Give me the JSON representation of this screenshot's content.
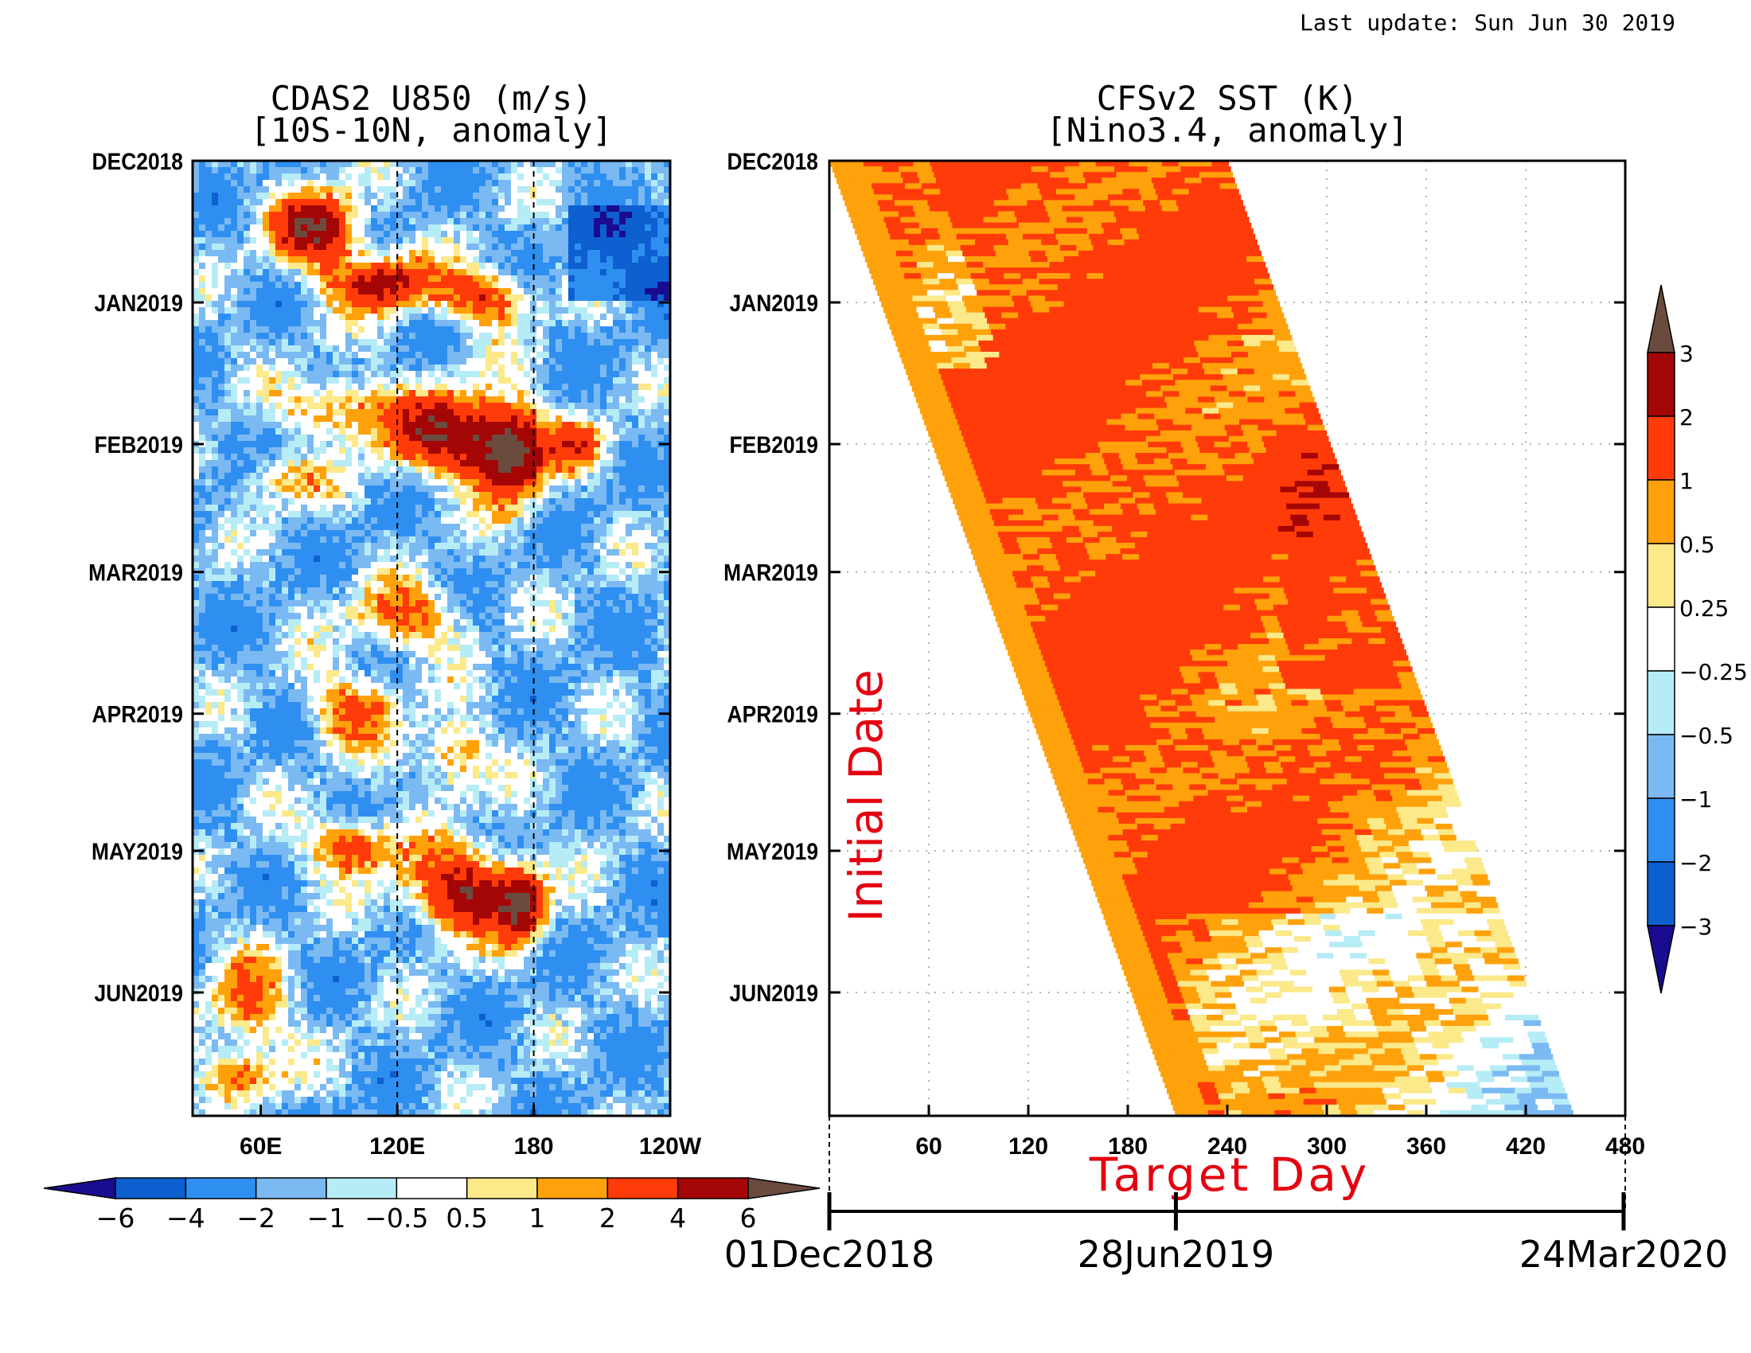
{
  "last_update": "Last update: Sun Jun 30 2019",
  "chart_data": [
    {
      "type": "heatmap",
      "title": "CDAS2 U850 (m/s)",
      "subtitle": "[10S-10N, anomaly]",
      "x_tick_labels": [
        "60E",
        "120E",
        "180",
        "120W"
      ],
      "x_ticks_lon": [
        60,
        120,
        180,
        240
      ],
      "xlim_lon": [
        30,
        240
      ],
      "reference_lines_lon": [
        120,
        180
      ],
      "y_tick_labels": [
        "DEC2018",
        "JAN2019",
        "FEB2019",
        "MAR2019",
        "APR2019",
        "MAY2019",
        "JUN2019"
      ],
      "y_ticks_day": [
        0,
        31,
        62,
        90,
        121,
        151,
        182
      ],
      "ylim_day": [
        0,
        209
      ],
      "colorbar_levels": [
        -6,
        -4,
        -2,
        -1,
        -0.5,
        0.5,
        1,
        2,
        4,
        6
      ],
      "colorbar_labels": [
        "−6",
        "−4",
        "−2",
        "−1",
        "−0.5",
        "0.5",
        "1",
        "2",
        "4",
        "6"
      ],
      "colors": [
        "#1a0c91",
        "#0e5fd0",
        "#2f8ff0",
        "#7bb9f2",
        "#b6ecf6",
        "#ffffff",
        "#fbe98a",
        "#ffa10b",
        "#ff3b0a",
        "#a40606",
        "#6b4b3e"
      ]
    },
    {
      "type": "heatmap",
      "title": "CFSv2 SST (K)",
      "subtitle": "[Nino3.4, anomaly]",
      "x_tick_labels": [
        "60",
        "120",
        "180",
        "240",
        "300",
        "360",
        "420",
        "480"
      ],
      "x_ticks": [
        60,
        120,
        180,
        240,
        300,
        360,
        420,
        480
      ],
      "xlim": [
        0,
        480
      ],
      "xlabel": "Target Day",
      "ylabel": "Initial Date",
      "y_tick_labels": [
        "DEC2018",
        "JAN2019",
        "FEB2019",
        "MAR2019",
        "APR2019",
        "MAY2019",
        "JUN2019"
      ],
      "y_ticks_day": [
        0,
        31,
        62,
        90,
        121,
        151,
        182
      ],
      "ylim_day": [
        0,
        209
      ],
      "forecast_length_days": 240,
      "date_axis_labels": [
        "01Dec2018",
        "28Jun2019",
        "24Mar2020"
      ],
      "date_axis_days": [
        0,
        209,
        479
      ],
      "colorbar_levels": [
        -3,
        -2,
        -1,
        -0.5,
        -0.25,
        0.25,
        0.5,
        1,
        2,
        3
      ],
      "colorbar_labels": [
        "−3",
        "−2",
        "−1",
        "−0.5",
        "−0.25",
        "0.25",
        "0.5",
        "1",
        "2",
        "3"
      ],
      "colors": [
        "#1a0c91",
        "#0e5fd0",
        "#2f8ff0",
        "#7bb9f2",
        "#b6ecf6",
        "#ffffff",
        "#fbe98a",
        "#ffa10b",
        "#ff3b0a",
        "#a40606",
        "#6b4b3e"
      ]
    }
  ]
}
